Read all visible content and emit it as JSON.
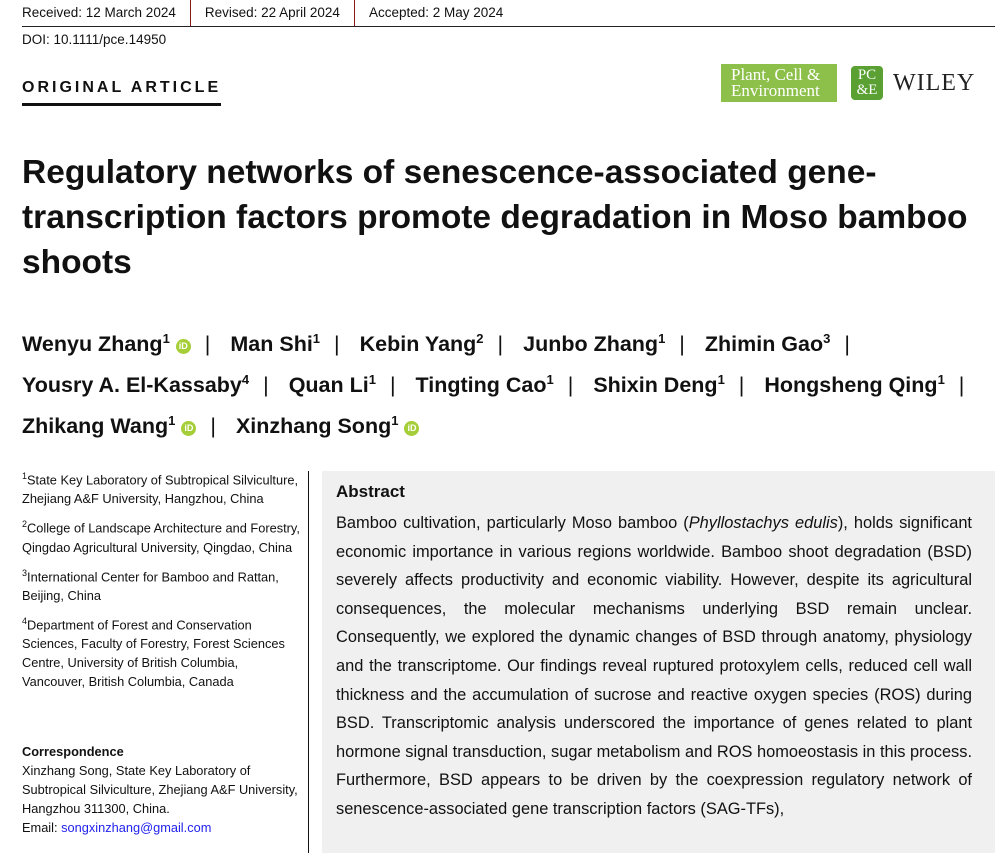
{
  "header": {
    "received": "Received: 12 March 2024",
    "revised": "Revised: 22 April 2024",
    "accepted": "Accepted: 2 May 2024",
    "doi": "DOI: 10.1111/pce.14950",
    "article_type": "ORIGINAL ARTICLE"
  },
  "logos": {
    "journal_line1": "Plant, Cell &",
    "journal_line2": "Environment",
    "badge_line1": "PC",
    "badge_line2": "&E",
    "publisher": "WILEY",
    "journal_color": "#8dc04a"
  },
  "title": "Regulatory networks of senescence-associated gene-transcription factors promote degradation in Moso bamboo shoots",
  "authors": [
    {
      "name": "Wenyu Zhang",
      "aff": "1",
      "orcid": true
    },
    {
      "name": "Man Shi",
      "aff": "1",
      "orcid": false
    },
    {
      "name": "Kebin Yang",
      "aff": "2",
      "orcid": false
    },
    {
      "name": "Junbo Zhang",
      "aff": "1",
      "orcid": false
    },
    {
      "name": "Zhimin Gao",
      "aff": "3",
      "orcid": false
    },
    {
      "name": "Yousry A. El-Kassaby",
      "aff": "4",
      "orcid": false
    },
    {
      "name": "Quan Li",
      "aff": "1",
      "orcid": false
    },
    {
      "name": "Tingting Cao",
      "aff": "1",
      "orcid": false
    },
    {
      "name": "Shixin Deng",
      "aff": "1",
      "orcid": false
    },
    {
      "name": "Hongsheng Qing",
      "aff": "1",
      "orcid": false
    },
    {
      "name": "Zhikang Wang",
      "aff": "1",
      "orcid": true
    },
    {
      "name": "Xinzhang Song",
      "aff": "1",
      "orcid": true
    }
  ],
  "affiliations": [
    {
      "num": "1",
      "text": "State Key Laboratory of Subtropical Silviculture, Zhejiang A&F University, Hangzhou, China"
    },
    {
      "num": "2",
      "text": "College of Landscape Architecture and Forestry, Qingdao Agricultural University, Qingdao, China"
    },
    {
      "num": "3",
      "text": "International Center for Bamboo and Rattan, Beijing, China"
    },
    {
      "num": "4",
      "text": "Department of Forest and Conservation Sciences, Faculty of Forestry, Forest Sciences Centre, University of British Columbia, Vancouver, British Columbia, Canada"
    }
  ],
  "correspondence": {
    "heading": "Correspondence",
    "text": "Xinzhang Song, State Key Laboratory of Subtropical Silviculture, Zhejiang A&F University, Hangzhou 311300, China.",
    "email_label": "Email: ",
    "email": "songxinzhang@gmail.com"
  },
  "abstract": {
    "heading": "Abstract",
    "text_before_italic": "Bamboo cultivation, particularly Moso bamboo (",
    "italic": "Phyllostachys edulis",
    "text_after_italic": "), holds significant economic importance in various regions worldwide. Bamboo shoot degradation (BSD) severely affects productivity and economic viability. However, despite its agricultural consequences, the molecular mechanisms underlying BSD remain unclear. Consequently, we explored the dynamic changes of BSD through anatomy, physiology and the transcriptome. Our findings reveal ruptured protoxylem cells, reduced cell wall thickness and the accumulation of sucrose and reactive oxygen species (ROS) during BSD. Transcriptomic analysis underscored the importance of genes related to plant hormone signal transduction, sugar metabolism and ROS homoeostasis in this process. Furthermore, BSD appears to be driven by the coexpression regulatory network of senescence-associated gene transcription factors (SAG-TFs),"
  }
}
